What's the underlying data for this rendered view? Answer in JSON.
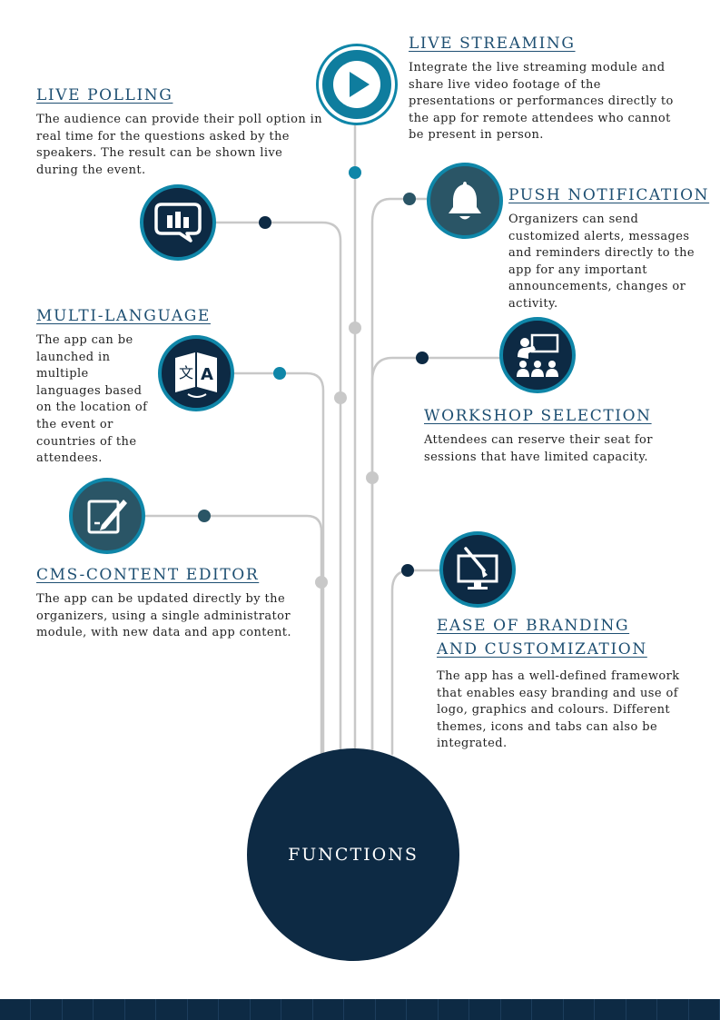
{
  "hub": {
    "label": "FUNCTIONS"
  },
  "colors": {
    "navy": "#0d2a44",
    "teal": "#0f86a8",
    "slate": "#2a5566",
    "line": "#c8c8c8",
    "title": "#1e4f72"
  },
  "features": {
    "live_polling": {
      "title": "LIVE POLLING",
      "desc": "The audience can provide their poll option in real time for the questions asked by the speakers. The result can be shown live during the event.",
      "icon": "poll-chat-icon"
    },
    "live_streaming": {
      "title": "LIVE STREAMING",
      "desc": "Integrate the live streaming module and share live video footage of the presentations or performances directly to the app for remote attendees who cannot be present in person.",
      "icon": "play-icon"
    },
    "push_notification": {
      "title": "PUSH NOTIFICATION",
      "desc": "Organizers can send customized alerts, messages and reminders directly to the app for any important announcements, changes or activity.",
      "icon": "bell-icon"
    },
    "multi_language": {
      "title": "MULTI-LANGUAGE",
      "desc": "The app can be launched in multiple languages based on the location of the event or countries of the attendees.",
      "icon": "translate-icon"
    },
    "workshop_selection": {
      "title": "WORKSHOP SELECTION",
      "desc": "Attendees can reserve their seat for sessions that have limited capacity.",
      "icon": "workshop-icon"
    },
    "cms_editor": {
      "title": "CMS-CONTENT EDITOR",
      "desc": "The app can be updated directly by the organizers, using a single administrator module, with new data and app content.",
      "icon": "edit-icon"
    },
    "branding": {
      "title_line1": "EASE OF BRANDING",
      "title_line2": "AND CUSTOMIZATION",
      "desc": "The app has a well-defined framework that enables easy branding and use of logo, graphics and colours. Different themes, icons and tabs can also be integrated.",
      "icon": "brush-monitor-icon"
    }
  }
}
